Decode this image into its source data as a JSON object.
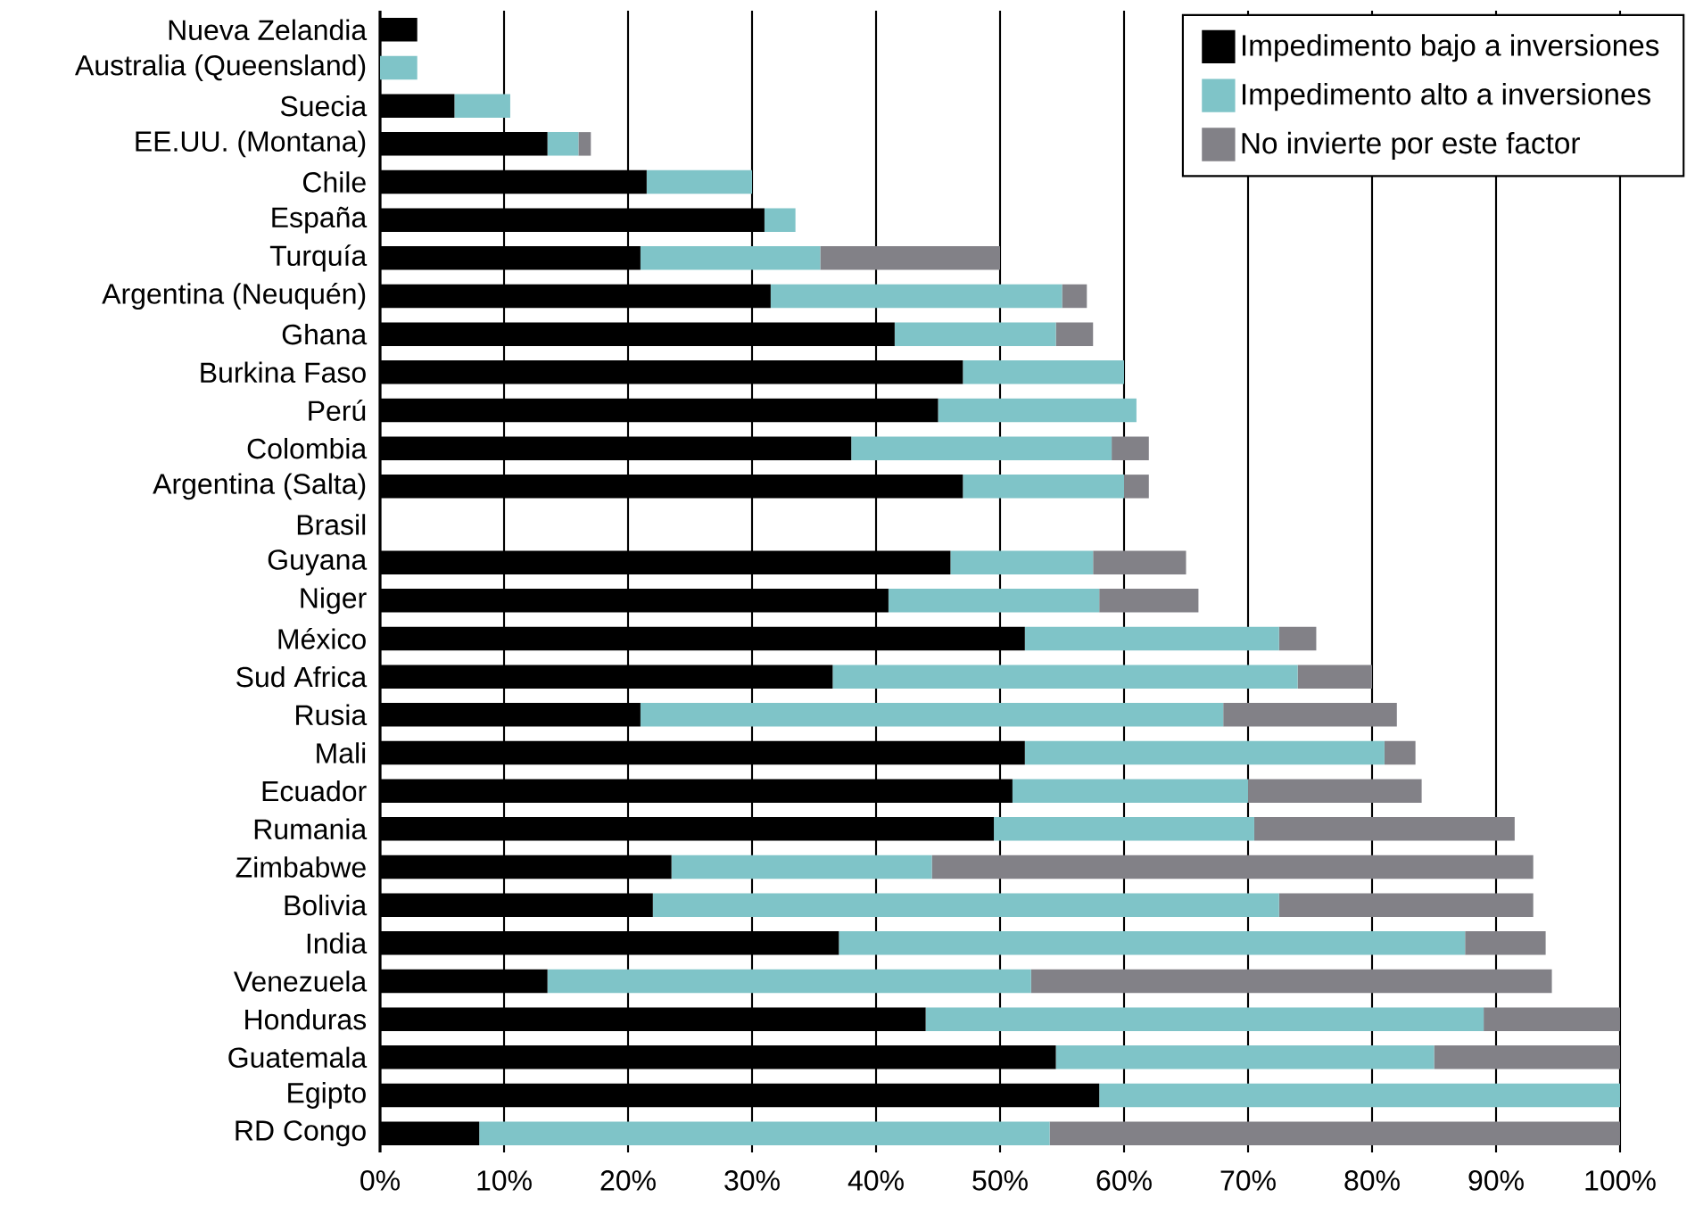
{
  "chart_data": {
    "type": "bar",
    "orientation": "horizontal",
    "stacked": true,
    "grid": "x",
    "legend": "top right",
    "categories": [
      "Nueva Zelandia",
      "Australia (Queensland)",
      "Suecia",
      "EE.UU. (Montana)",
      "Chile",
      "España",
      "Turquía",
      "Argentina (Neuquén)",
      "Ghana",
      "Burkina Faso",
      "Perú",
      "Colombia",
      "Argentina (Salta)",
      "Brasil",
      "Guyana",
      "Niger",
      "México",
      "Sud Africa",
      "Rusia",
      "Mali",
      "Ecuador",
      "Rumania",
      "Zimbabwe",
      "Bolivia",
      "India",
      "Venezuela",
      "Honduras",
      "Guatemala",
      "Egipto",
      "RD Congo"
    ],
    "series": [
      {
        "name": "Impedimento bajo a inversiones",
        "color": "#000000",
        "values": [
          3,
          0,
          6,
          13.5,
          21.5,
          31,
          21,
          31.5,
          41.5,
          47,
          45,
          38,
          47,
          null,
          46,
          41,
          52,
          36.5,
          21,
          52,
          51,
          49.5,
          23.5,
          22,
          37,
          13.5,
          44,
          54.5,
          58,
          8
        ]
      },
      {
        "name": "Impedimento alto a inversiones",
        "color": "#7fc4c8",
        "values": [
          0,
          3,
          4.5,
          2.5,
          8.5,
          2.5,
          14.5,
          23.5,
          13,
          13,
          16,
          21,
          13,
          null,
          11.5,
          17,
          20.5,
          37.5,
          47,
          29,
          19,
          21,
          21,
          50.5,
          50.5,
          39,
          45,
          30.5,
          42,
          46
        ]
      },
      {
        "name": "No invierte por este factor",
        "color": "#828187",
        "values": [
          0,
          0,
          0,
          1,
          0,
          0,
          14.5,
          2,
          3,
          0,
          0,
          3,
          2,
          null,
          7.5,
          8,
          3,
          6,
          14,
          2.5,
          14,
          21,
          48.5,
          20.5,
          6.5,
          42,
          11,
          15,
          0,
          46
        ]
      }
    ],
    "xlim": [
      0,
      100
    ],
    "xticks": [
      {
        "value": 0,
        "label": "0%"
      },
      {
        "value": 10,
        "label": "10%"
      },
      {
        "value": 20,
        "label": "20%"
      },
      {
        "value": 30,
        "label": "30%"
      },
      {
        "value": 40,
        "label": "40%"
      },
      {
        "value": 50,
        "label": "50%"
      },
      {
        "value": 60,
        "label": "60%"
      },
      {
        "value": 70,
        "label": "70%"
      },
      {
        "value": 80,
        "label": "80%"
      },
      {
        "value": 90,
        "label": "90%"
      },
      {
        "value": 100,
        "label": "100%"
      }
    ]
  }
}
